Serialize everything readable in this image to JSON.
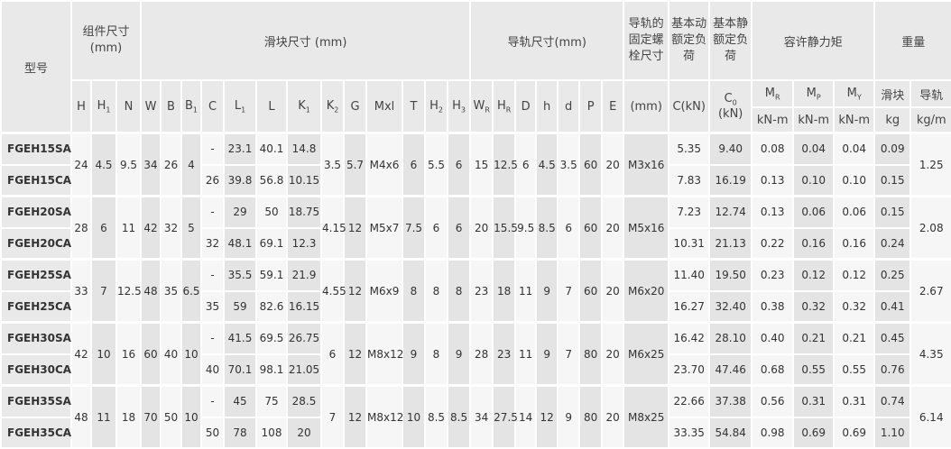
{
  "header": {
    "model": "型号",
    "assembly": "组件尺寸 (mm)",
    "block": "滑块尺寸 (mm)",
    "rail": "导轨尺寸(mm)",
    "bolt": "导轨的固定螺栓尺寸",
    "dynamic": "基本动额定负荷",
    "static": "基本静额定负荷",
    "moment": "容许静力矩",
    "weight": "重量",
    "columns": [
      [
        "H"
      ],
      [
        "H",
        "1"
      ],
      [
        "N"
      ],
      [
        "W"
      ],
      [
        "B"
      ],
      [
        "B",
        "1"
      ],
      [
        "C"
      ],
      [
        "L",
        "1"
      ],
      [
        "L"
      ],
      [
        "K",
        "1"
      ],
      [
        "K",
        "2"
      ],
      [
        "G"
      ],
      [
        "Mxl"
      ],
      [
        "T"
      ],
      [
        "H",
        "2"
      ],
      [
        "H",
        "3"
      ],
      [
        "W",
        "R"
      ],
      [
        "H",
        "R"
      ],
      [
        "D"
      ],
      [
        "h"
      ],
      [
        "d"
      ],
      [
        "P"
      ],
      [
        "E"
      ],
      [
        "(mm)"
      ],
      [
        "C(kN)"
      ],
      [
        "C",
        "0",
        " (kN)"
      ],
      [
        "M",
        "R"
      ],
      [
        "M",
        "P"
      ],
      [
        "M",
        "Y"
      ],
      [
        "滑块"
      ],
      [
        "导轨"
      ]
    ],
    "units": [
      "kN-m",
      "kN-m",
      "kN-m",
      "kg",
      "kg/m"
    ]
  },
  "groups": [
    {
      "shared_a": [
        "24",
        "4.5",
        "9.5",
        "34",
        "26",
        "4"
      ],
      "shared_b": [
        "3.5",
        "5.7",
        "M4x6",
        "6",
        "5.5",
        "6",
        "15",
        "12.5",
        "6",
        "4.5",
        "3.5",
        "60",
        "20",
        "M3x16"
      ],
      "rail_weight": "1.25",
      "rows": [
        {
          "model": "FGEH15SA",
          "a": [
            "-",
            "23.1",
            "40.1",
            "14.8"
          ],
          "b": [
            "5.35",
            "9.40",
            "0.08",
            "0.04",
            "0.04",
            "0.09"
          ]
        },
        {
          "model": "FGEH15CA",
          "a": [
            "26",
            "39.8",
            "56.8",
            "10.15"
          ],
          "b": [
            "7.83",
            "16.19",
            "0.13",
            "0.10",
            "0.10",
            "0.15"
          ]
        }
      ]
    },
    {
      "shared_a": [
        "28",
        "6",
        "11",
        "42",
        "32",
        "5"
      ],
      "shared_b": [
        "4.15",
        "12",
        "M5x7",
        "7.5",
        "6",
        "6",
        "20",
        "15.5",
        "9.5",
        "8.5",
        "6",
        "60",
        "20",
        "M5x16"
      ],
      "rail_weight": "2.08",
      "rows": [
        {
          "model": "FGEH20SA",
          "a": [
            "-",
            "29",
            "50",
            "18.75"
          ],
          "b": [
            "7.23",
            "12.74",
            "0.13",
            "0.06",
            "0.06",
            "0.15"
          ]
        },
        {
          "model": "FGEH20CA",
          "a": [
            "32",
            "48.1",
            "69.1",
            "12.3"
          ],
          "b": [
            "10.31",
            "21.13",
            "0.22",
            "0.16",
            "0.16",
            "0.24"
          ]
        }
      ]
    },
    {
      "shared_a": [
        "33",
        "7",
        "12.5",
        "48",
        "35",
        "6.5"
      ],
      "shared_b": [
        "4.55",
        "12",
        "M6x9",
        "8",
        "8",
        "8",
        "23",
        "18",
        "11",
        "9",
        "7",
        "60",
        "20",
        "M6x20"
      ],
      "rail_weight": "2.67",
      "rows": [
        {
          "model": "FGEH25SA",
          "a": [
            "-",
            "35.5",
            "59.1",
            "21.9"
          ],
          "b": [
            "11.40",
            "19.50",
            "0.23",
            "0.12",
            "0.12",
            "0.25"
          ]
        },
        {
          "model": "FGEH25CA",
          "a": [
            "35",
            "59",
            "82.6",
            "16.15"
          ],
          "b": [
            "16.27",
            "32.40",
            "0.38",
            "0.32",
            "0.32",
            "0.41"
          ]
        }
      ]
    },
    {
      "shared_a": [
        "42",
        "10",
        "16",
        "60",
        "40",
        "10"
      ],
      "shared_b": [
        "6",
        "12",
        "M8x12",
        "9",
        "8",
        "9",
        "28",
        "23",
        "11",
        "9",
        "7",
        "80",
        "20",
        "M6x25"
      ],
      "rail_weight": "4.35",
      "rows": [
        {
          "model": "FGEH30SA",
          "a": [
            "-",
            "41.5",
            "69.5",
            "26.75"
          ],
          "b": [
            "16.42",
            "28.10",
            "0.40",
            "0.21",
            "0.21",
            "0.45"
          ]
        },
        {
          "model": "FGEH30CA",
          "a": [
            "40",
            "70.1",
            "98.1",
            "21.05"
          ],
          "b": [
            "23.70",
            "47.46",
            "0.68",
            "0.55",
            "0.55",
            "0.76"
          ]
        }
      ]
    },
    {
      "shared_a": [
        "48",
        "11",
        "18",
        "70",
        "50",
        "10"
      ],
      "shared_b": [
        "7",
        "12",
        "M8x12",
        "10",
        "8.5",
        "8.5",
        "34",
        "27.5",
        "14",
        "12",
        "9",
        "80",
        "20",
        "M8x25"
      ],
      "rail_weight": "6.14",
      "rows": [
        {
          "model": "FGEH35SA",
          "a": [
            "-",
            "45",
            "75",
            "28.5"
          ],
          "b": [
            "22.66",
            "37.38",
            "0.56",
            "0.31",
            "0.31",
            "0.74"
          ]
        },
        {
          "model": "FGEH35CA",
          "a": [
            "50",
            "78",
            "108",
            "20"
          ],
          "b": [
            "33.35",
            "54.84",
            "0.98",
            "0.69",
            "0.69",
            "1.10"
          ]
        }
      ]
    }
  ]
}
